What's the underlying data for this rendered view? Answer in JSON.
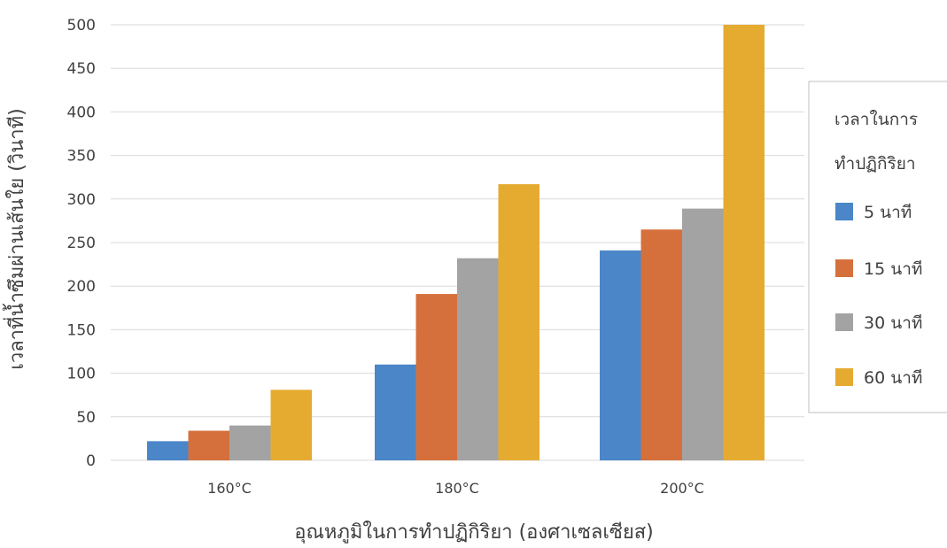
{
  "chart_data": {
    "type": "bar",
    "categories": [
      "160°C",
      "180°C",
      "200°C"
    ],
    "series": [
      {
        "name": "5 นาที",
        "color": "#4a86c8",
        "values": [
          22,
          110,
          241
        ]
      },
      {
        "name": "15 นาที",
        "color": "#d5703c",
        "values": [
          34,
          191,
          265
        ]
      },
      {
        "name": "30 นาที",
        "color": "#a3a3a3",
        "values": [
          40,
          232,
          289
        ]
      },
      {
        "name": "60 นาที",
        "color": "#e5ab31",
        "values": [
          81,
          317,
          500
        ]
      }
    ],
    "title": "",
    "xlabel": "อุณหภูมิในการทำปฏิกิริยา (องศาเซลเซียส)",
    "ylabel": "เวลาที่น้ำซึมผ่านเส้นใย (วินาที)",
    "ylim": [
      0,
      500
    ],
    "yticks": [
      0,
      50,
      100,
      150,
      200,
      250,
      300,
      350,
      400,
      450,
      500
    ],
    "grid": true,
    "legend": {
      "title_line1": "เวลาในการ",
      "title_line2": "ทำปฏิกิริยา",
      "position": "right"
    }
  }
}
